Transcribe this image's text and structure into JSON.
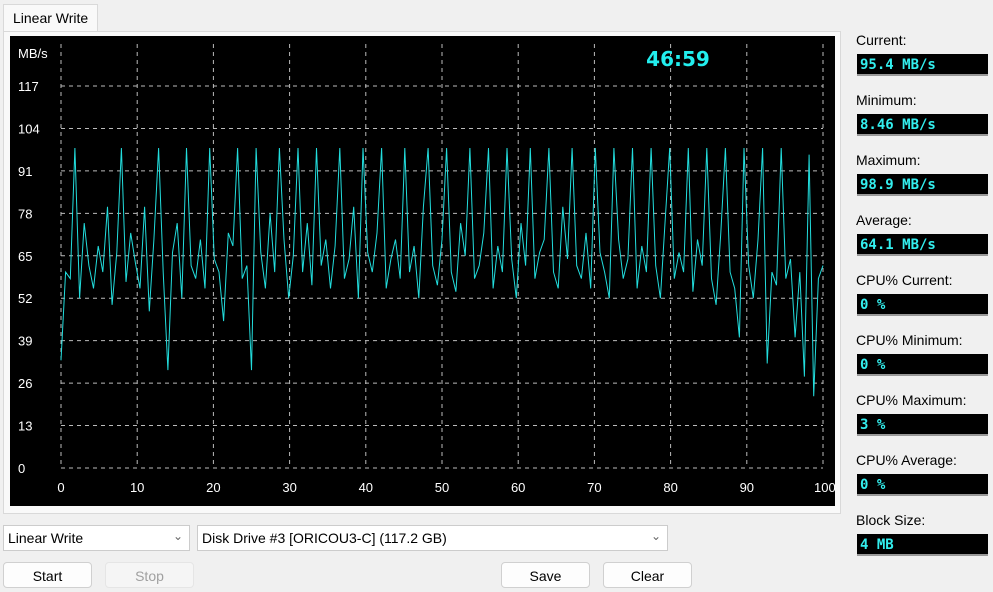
{
  "tab": {
    "label": "Linear Write"
  },
  "timer": "46:59",
  "stats": [
    {
      "label": "Current:",
      "value": "95.4 MB/s"
    },
    {
      "label": "Minimum:",
      "value": "8.46 MB/s"
    },
    {
      "label": "Maximum:",
      "value": "98.9 MB/s"
    },
    {
      "label": "Average:",
      "value": "64.1 MB/s"
    },
    {
      "label": "CPU% Current:",
      "value": "0 %"
    },
    {
      "label": "CPU% Minimum:",
      "value": "0 %"
    },
    {
      "label": "CPU% Maximum:",
      "value": "3 %"
    },
    {
      "label": "CPU% Average:",
      "value": "0 %"
    },
    {
      "label": "Block Size:",
      "value": "4 MB"
    }
  ],
  "controls": {
    "mode": "Linear Write",
    "drive": "Disk Drive #3  [ORICOU3-C]  (117.2 GB)",
    "start": "Start",
    "stop": "Stop",
    "save": "Save",
    "clear": "Clear"
  },
  "chart_data": {
    "type": "line",
    "ylabel": "MB/s",
    "yticks": [
      "0",
      "13",
      "26",
      "39",
      "52",
      "65",
      "78",
      "91",
      "104",
      "117"
    ],
    "xticks": [
      "0",
      "10",
      "20",
      "30",
      "40",
      "50",
      "60",
      "70",
      "80",
      "90",
      "100 %"
    ],
    "xlim": [
      0,
      100
    ],
    "ylim": [
      0,
      117
    ],
    "grid": true,
    "line_color": "#22dddd",
    "y": [
      33,
      60,
      58,
      98,
      52,
      75,
      62,
      55,
      68,
      60,
      80,
      50,
      66,
      98,
      57,
      72,
      63,
      55,
      80,
      48,
      70,
      98,
      60,
      30,
      66,
      75,
      52,
      98,
      62,
      58,
      70,
      55,
      98,
      64,
      60,
      45,
      72,
      68,
      98,
      58,
      62,
      30,
      98,
      66,
      55,
      78,
      60,
      98,
      70,
      52,
      65,
      98,
      60,
      75,
      56,
      98,
      62,
      70,
      55,
      68,
      98,
      58,
      64,
      80,
      52,
      98,
      66,
      60,
      72,
      98,
      55,
      64,
      70,
      58,
      98,
      60,
      68,
      52,
      80,
      98,
      62,
      56,
      70,
      98,
      60,
      54,
      75,
      65,
      98,
      58,
      62,
      72,
      98,
      55,
      68,
      60,
      98,
      64,
      52,
      75,
      62,
      98,
      58,
      66,
      70,
      98,
      60,
      55,
      80,
      64,
      98,
      62,
      58,
      72,
      55,
      98,
      66,
      60,
      52,
      98,
      70,
      58,
      64,
      98,
      55,
      68,
      60,
      98,
      62,
      52,
      75,
      98,
      58,
      66,
      60,
      98,
      54,
      70,
      62,
      98,
      58,
      50,
      72,
      98,
      60,
      55,
      40,
      98,
      62,
      52,
      70,
      98,
      32,
      60,
      56,
      98,
      58,
      64,
      40,
      60,
      28,
      96,
      22,
      58,
      62
    ]
  }
}
